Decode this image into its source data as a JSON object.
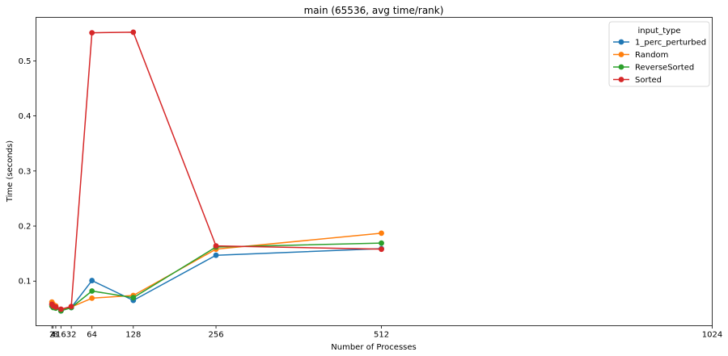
{
  "chart_data": {
    "type": "line",
    "title": "main (65536, avg time/rank)",
    "xlabel": "Number of Processes",
    "ylabel": "Time (seconds)",
    "x_ticks": [
      2,
      4,
      8,
      16,
      32,
      64,
      128,
      256,
      512,
      1024
    ],
    "x_tick_labels": [
      "2",
      "4",
      "8",
      "16",
      "32",
      "64",
      "128",
      "256",
      "512",
      "1024"
    ],
    "y_ticks": [
      0.1,
      0.2,
      0.3,
      0.4,
      0.5
    ],
    "y_tick_labels": [
      "0.1",
      "0.2",
      "0.3",
      "0.4",
      "0.5"
    ],
    "xlim": [
      -22.6,
      1024
    ],
    "ylim": [
      0.019,
      0.579
    ],
    "legend_title": "input_type",
    "legend_position": "top-right",
    "grid": false,
    "series": [
      {
        "name": "1_perc_perturbed",
        "color": "#1f77b4",
        "x": [
          2,
          4,
          8,
          16,
          32,
          64,
          128,
          256,
          512
        ],
        "values": [
          0.058,
          0.055,
          0.052,
          0.046,
          0.052,
          0.101,
          0.065,
          0.147,
          0.159
        ]
      },
      {
        "name": "Random",
        "color": "#ff7f0e",
        "x": [
          2,
          4,
          8,
          16,
          32,
          64,
          128,
          256,
          512
        ],
        "values": [
          0.062,
          0.058,
          0.055,
          0.048,
          0.053,
          0.069,
          0.074,
          0.158,
          0.187
        ]
      },
      {
        "name": "ReverseSorted",
        "color": "#2ca02c",
        "x": [
          2,
          4,
          8,
          16,
          32,
          64,
          128,
          256,
          512
        ],
        "values": [
          0.055,
          0.052,
          0.051,
          0.046,
          0.052,
          0.082,
          0.07,
          0.162,
          0.169
        ]
      },
      {
        "name": "Sorted",
        "color": "#d62728",
        "x": [
          2,
          4,
          8,
          16,
          32,
          64,
          128,
          256,
          512
        ],
        "values": [
          0.058,
          0.055,
          0.053,
          0.049,
          0.054,
          0.551,
          0.552,
          0.164,
          0.158
        ]
      }
    ]
  }
}
